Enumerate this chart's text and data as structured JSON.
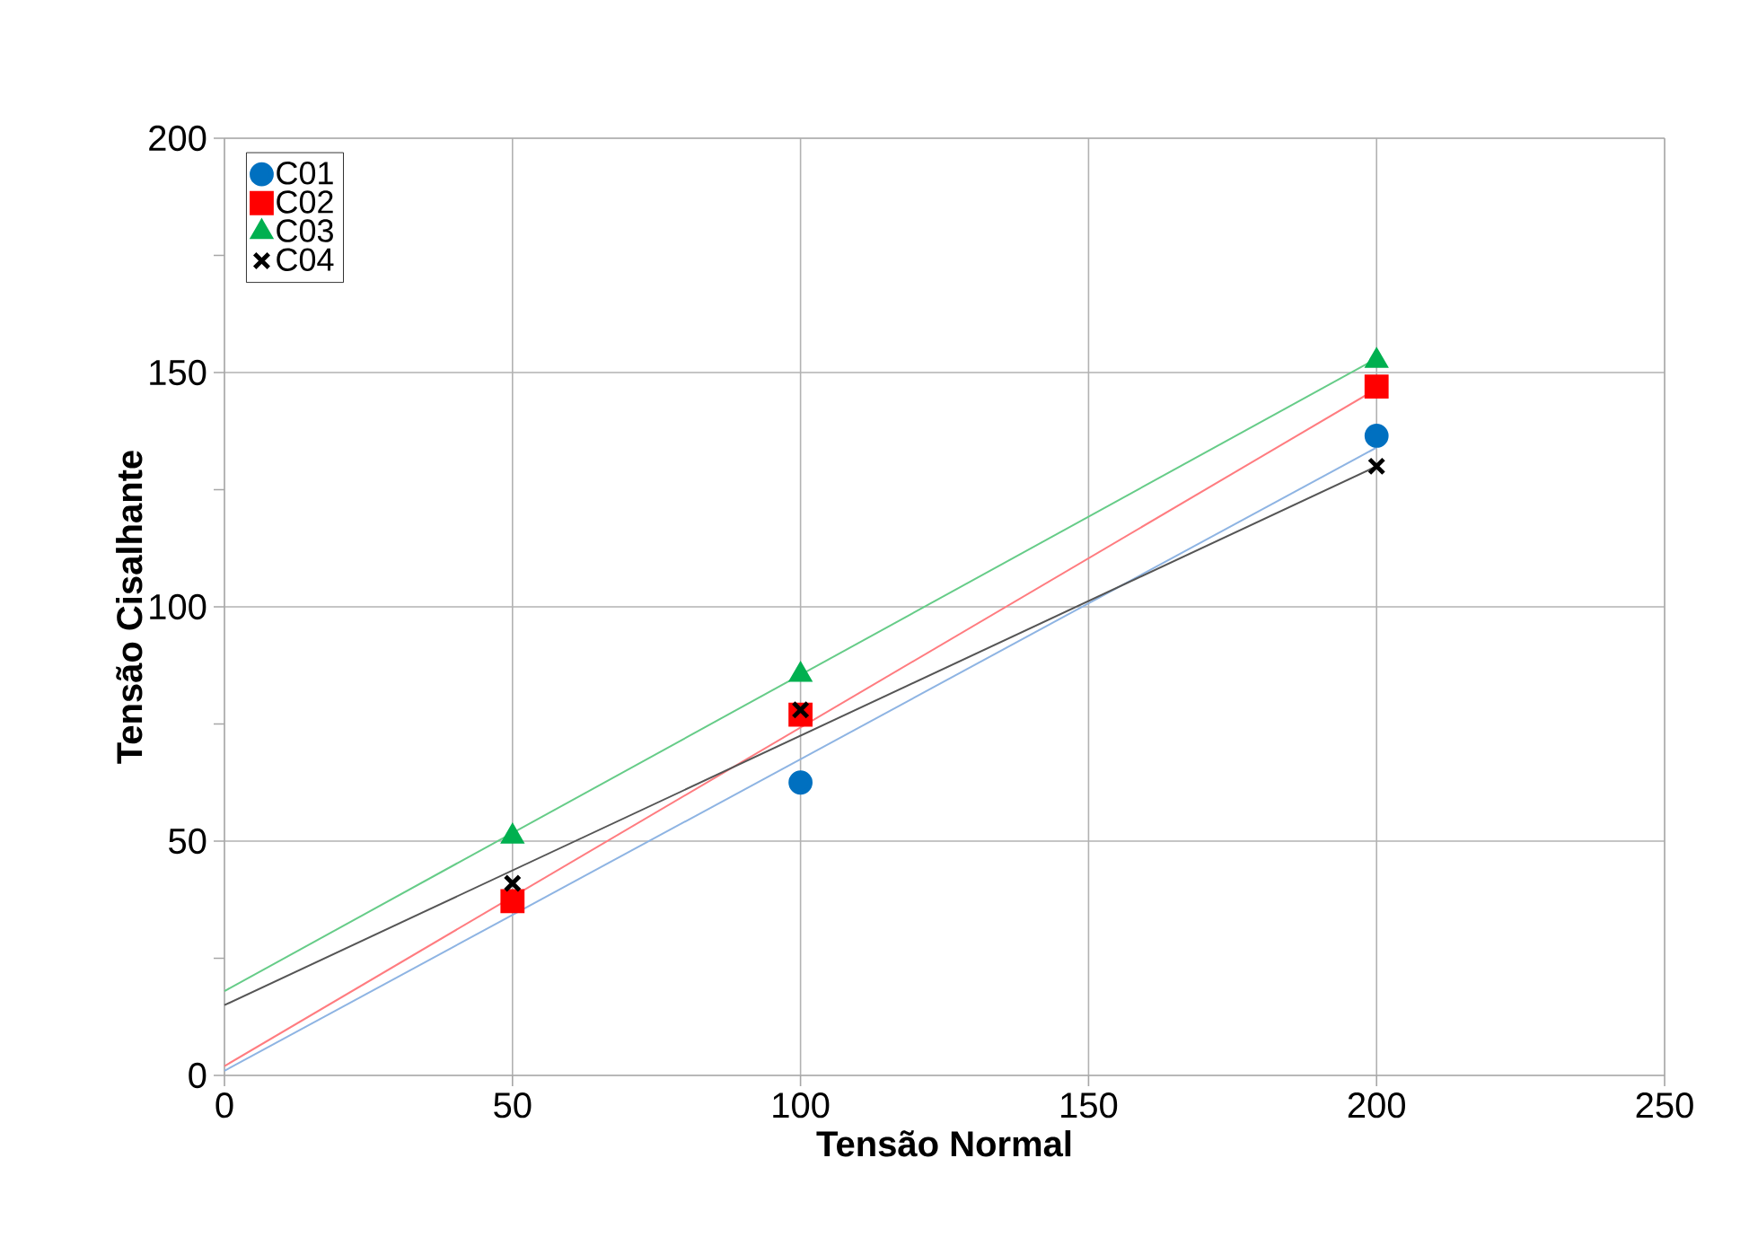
{
  "chart_data": {
    "type": "scatter",
    "xlabel": "Tensão Normal",
    "ylabel": "Tensão Cisalhante",
    "xlim": [
      0,
      250
    ],
    "ylim": [
      0,
      200
    ],
    "xticks": [
      0,
      50,
      100,
      150,
      200,
      250
    ],
    "yticks": [
      0,
      {
        "value": 25,
        "label": null
      },
      50,
      {
        "value": 75,
        "label": null
      },
      100,
      {
        "value": 125,
        "label": null
      },
      150,
      {
        "value": 175,
        "label": null
      },
      200
    ],
    "grid": true,
    "legend": "top left",
    "series": [
      {
        "name": "C01",
        "color": "#0070c0",
        "marker": "circle",
        "x": [
          100,
          200
        ],
        "values": [
          62.5,
          136.5
        ]
      },
      {
        "name": "C02",
        "color": "#ff0000",
        "marker": "square",
        "x": [
          50,
          100,
          200
        ],
        "values": [
          37.2,
          77,
          147
        ]
      },
      {
        "name": "C03",
        "color": "#00b050",
        "marker": "triangle",
        "x": [
          50,
          100,
          200
        ],
        "values": [
          51,
          85.5,
          152.5
        ]
      },
      {
        "name": "C04",
        "color": "#000000",
        "marker": "cross",
        "x": [
          50,
          100,
          200
        ],
        "values": [
          41,
          78,
          130
        ]
      },
      {
        "type": "line",
        "color": "#8eb4e3",
        "marker": "none",
        "x": [
          0,
          200
        ],
        "values": [
          1,
          134
        ]
      },
      {
        "type": "line",
        "color": "#ff7c80",
        "marker": "none",
        "x": [
          0,
          200
        ],
        "values": [
          2,
          146.5
        ]
      },
      {
        "type": "line",
        "color": "#66cc88",
        "marker": "none",
        "x": [
          0,
          200
        ],
        "values": [
          18,
          153
        ]
      },
      {
        "type": "line",
        "color": "#555555",
        "marker": "none",
        "x": [
          0,
          200
        ],
        "values": [
          15,
          130
        ]
      }
    ]
  }
}
